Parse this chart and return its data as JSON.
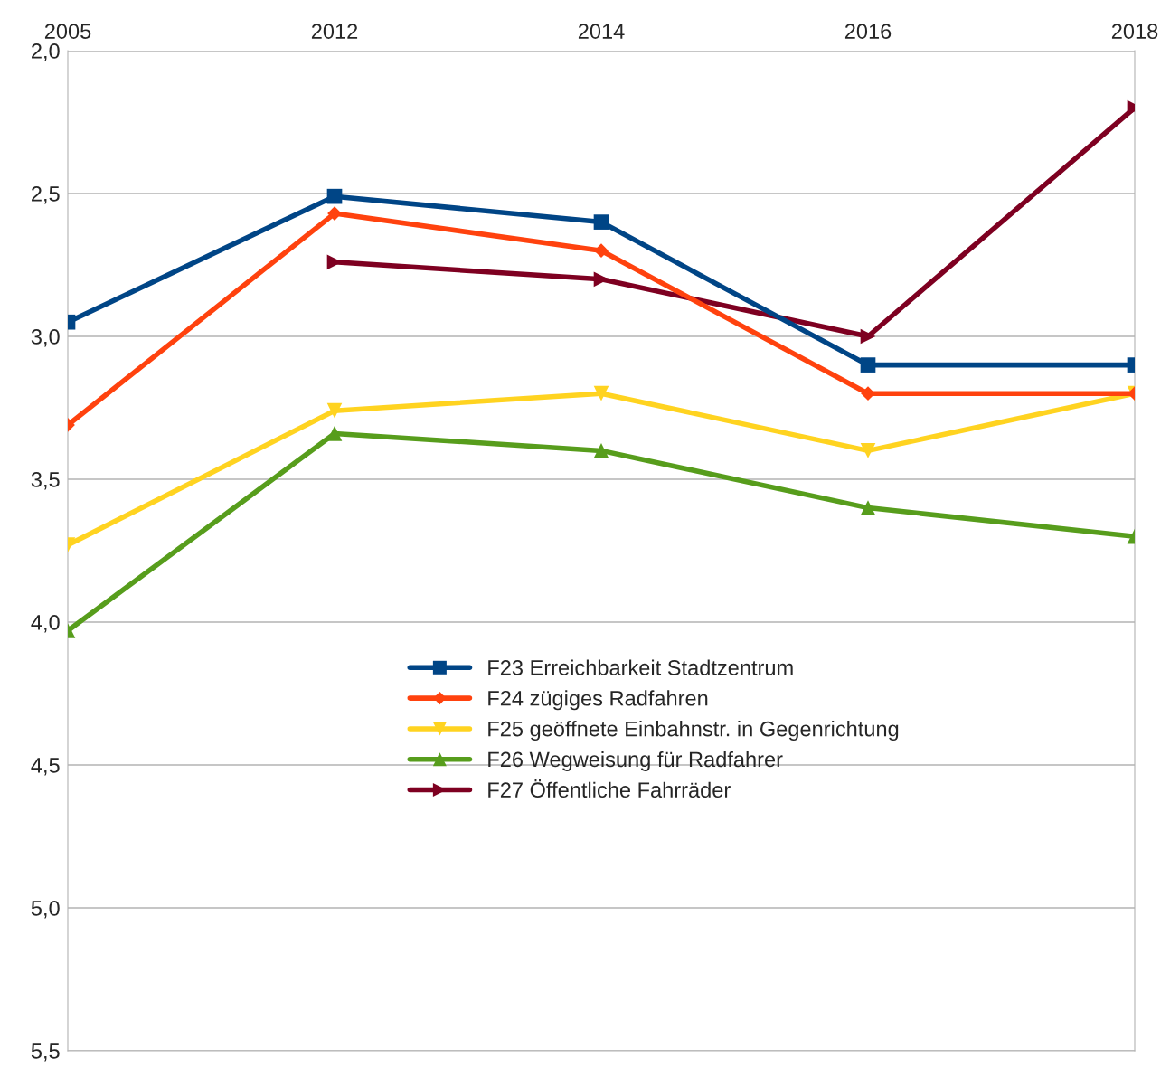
{
  "chart_data": {
    "type": "line",
    "categories": [
      "2005",
      "2012",
      "2014",
      "2016",
      "2018"
    ],
    "ylim": [
      5.5,
      2.0
    ],
    "yticks": [
      {
        "value": 2.0,
        "label": "2,0"
      },
      {
        "value": 2.5,
        "label": "2,5"
      },
      {
        "value": 3.0,
        "label": "3,0"
      },
      {
        "value": 3.5,
        "label": "3,5"
      },
      {
        "value": 4.0,
        "label": "4,0"
      },
      {
        "value": 4.5,
        "label": "4,5"
      },
      {
        "value": 5.0,
        "label": "5,0"
      },
      {
        "value": 5.5,
        "label": "5,5"
      }
    ],
    "grid": "y",
    "legend": "center",
    "line_style": "solid",
    "series": [
      {
        "name": "F23 Erreichbarkeit Stadtzentrum",
        "color": "#004586",
        "marker": "square",
        "values": [
          2.95,
          2.51,
          2.6,
          3.1,
          3.1
        ]
      },
      {
        "name": "F24 zügiges Radfahren",
        "color": "#ff420e",
        "marker": "diamond",
        "values": [
          3.31,
          2.57,
          2.7,
          3.2,
          3.2
        ]
      },
      {
        "name": "F25 geöffnete Einbahnstr. in Gegenrichtung",
        "color": "#ffd320",
        "marker": "triangle_down",
        "values": [
          3.73,
          3.26,
          3.2,
          3.4,
          3.2
        ]
      },
      {
        "name": "F26 Wegweisung für Radfahrer",
        "color": "#579d1c",
        "marker": "triangle",
        "values": [
          4.03,
          3.34,
          3.4,
          3.6,
          3.7
        ]
      },
      {
        "name": "F27 Öffentliche Fahrräder",
        "color": "#7e0021",
        "marker": "triangle_right",
        "values": [
          null,
          2.74,
          2.8,
          3.0,
          2.2
        ]
      }
    ]
  }
}
